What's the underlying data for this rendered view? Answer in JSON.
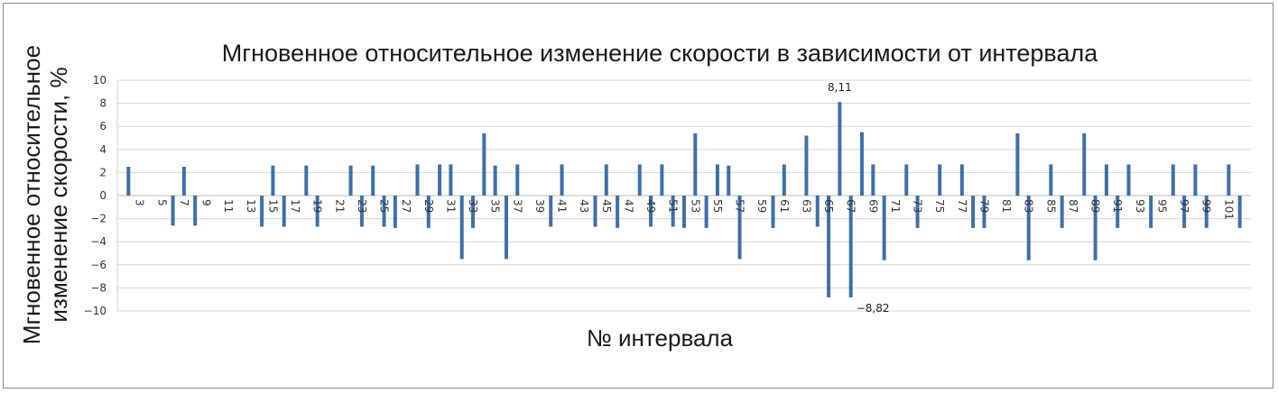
{
  "chart_data": {
    "type": "bar",
    "title": "Мгновенное относительное изменение скорости в зависимости от интервала",
    "xlabel": "№ интервала",
    "ylabel_lines": [
      "Мгновенное относительное",
      "изменение скорости, %"
    ],
    "ylim": [
      -10,
      10
    ],
    "yticks": [
      "−10",
      "−8",
      "−6",
      "−4",
      "−2",
      "0",
      "2",
      "4",
      "6",
      "8",
      "10"
    ],
    "grid": true,
    "legend": "none",
    "bar_color": "#3e6fa9",
    "x": [
      2,
      3,
      4,
      5,
      6,
      7,
      8,
      9,
      10,
      11,
      12,
      13,
      14,
      15,
      16,
      17,
      18,
      19,
      20,
      21,
      22,
      23,
      24,
      25,
      26,
      27,
      28,
      29,
      30,
      31,
      32,
      33,
      34,
      35,
      36,
      37,
      38,
      39,
      40,
      41,
      42,
      43,
      44,
      45,
      46,
      47,
      48,
      49,
      50,
      51,
      52,
      53,
      54,
      55,
      56,
      57,
      58,
      59,
      60,
      61,
      62,
      63,
      64,
      65,
      66,
      67,
      68,
      69,
      70,
      71,
      72,
      73,
      74,
      75,
      76,
      77,
      78,
      79,
      80,
      81,
      82,
      83,
      84,
      85,
      86,
      87,
      88,
      89,
      90,
      91,
      92,
      93,
      94,
      95,
      96,
      97,
      98,
      99,
      100,
      101,
      102
    ],
    "values": [
      2.5,
      0,
      0,
      0,
      -2.6,
      2.5,
      -2.6,
      0,
      0,
      0,
      0,
      0,
      -2.7,
      2.6,
      -2.7,
      0,
      2.6,
      -2.7,
      0,
      0,
      2.6,
      -2.7,
      2.6,
      -2.7,
      -2.8,
      0,
      2.7,
      -2.8,
      2.7,
      2.7,
      -5.5,
      -2.8,
      5.4,
      2.6,
      -5.5,
      2.7,
      0,
      0,
      -2.7,
      2.7,
      0,
      0,
      -2.7,
      2.7,
      -2.8,
      0,
      2.7,
      -2.7,
      2.7,
      -2.7,
      -2.8,
      5.4,
      -2.8,
      2.7,
      2.6,
      -5.5,
      0,
      0,
      -2.8,
      2.7,
      0,
      5.2,
      -2.7,
      -8.82,
      8.11,
      -8.82,
      5.5,
      2.7,
      -5.6,
      0,
      2.7,
      -2.8,
      0,
      2.7,
      0,
      2.7,
      -2.8,
      -2.8,
      0,
      0,
      5.4,
      -5.6,
      0,
      2.7,
      -2.8,
      0,
      5.4,
      -5.6,
      2.7,
      -2.8,
      2.7,
      0,
      -2.8,
      0,
      2.7,
      -2.8,
      2.7,
      -2.8,
      0,
      2.7,
      -2.8
    ],
    "tick_labels": [
      "3",
      "5",
      "7",
      "9",
      "11",
      "13",
      "15",
      "17",
      "19",
      "21",
      "23",
      "25",
      "27",
      "29",
      "31",
      "33",
      "35",
      "37",
      "39",
      "41",
      "43",
      "45",
      "47",
      "49",
      "51",
      "53",
      "55",
      "57",
      "59",
      "61",
      "63",
      "65",
      "67",
      "69",
      "71",
      "73",
      "75",
      "77",
      "79",
      "81",
      "83",
      "85",
      "87",
      "89",
      "91",
      "93",
      "95",
      "97",
      "99",
      "101"
    ],
    "annotations": [
      {
        "x": 66,
        "text": "8,11"
      },
      {
        "x": 67,
        "text": "−8,82"
      }
    ]
  }
}
